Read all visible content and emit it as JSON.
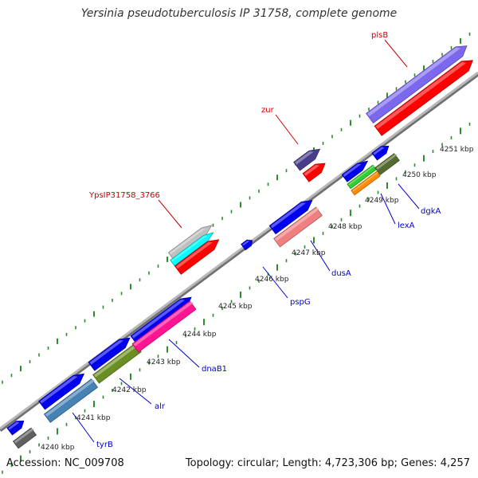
{
  "title": "Yersinia pseudotuberculosis IP 31758, complete genome",
  "footer": {
    "accession": "Accession: NC_009708",
    "summary": "Topology: circular; Length: 4,723,306 bp; Genes: 4,257"
  },
  "colors": {
    "backbone": "#a0a0a0",
    "ruler_tick": "#2e8b2e",
    "forward_label": "#cc0000",
    "reverse_label": "#0000cc"
  },
  "ruler_labels": [
    "4240 kbp",
    "4241 kbp",
    "4242 kbp",
    "4243 kbp",
    "4244 kbp",
    "4245 kbp",
    "4246 kbp",
    "4247 kbp",
    "4248 kbp",
    "4249 kbp",
    "4250 kbp",
    "4251 kbp"
  ],
  "gene_labels": [
    {
      "text": "plsB",
      "strand": "forward"
    },
    {
      "text": "zur",
      "strand": "forward"
    },
    {
      "text": "YpsIP31758_3766",
      "strand": "forward"
    },
    {
      "text": "dgkA",
      "strand": "reverse"
    },
    {
      "text": "lexA",
      "strand": "reverse"
    },
    {
      "text": "dusA",
      "strand": "reverse"
    },
    {
      "text": "pspG",
      "strand": "reverse"
    },
    {
      "text": "dnaB1",
      "strand": "reverse"
    },
    {
      "text": "alr",
      "strand": "reverse"
    },
    {
      "text": "tyrB",
      "strand": "reverse"
    }
  ],
  "features": [
    {
      "kind": "gene",
      "color": "#0000ee"
    },
    {
      "kind": "gene",
      "color": "#606060"
    },
    {
      "kind": "gene",
      "color": "#0000ee"
    },
    {
      "kind": "gene",
      "color": "#4682b4"
    },
    {
      "kind": "gene",
      "color": "#0000ee"
    },
    {
      "kind": "gene",
      "color": "#6b8e23"
    },
    {
      "kind": "gene",
      "color": "#0000ee"
    },
    {
      "kind": "gene",
      "color": "#ff1493"
    },
    {
      "kind": "gene",
      "color": "#0000ee"
    },
    {
      "kind": "gene",
      "color": "#0000ee"
    },
    {
      "kind": "gene",
      "color": "#f08080"
    },
    {
      "kind": "gene",
      "color": "#0000ee"
    },
    {
      "kind": "gene",
      "color": "#32cd32"
    },
    {
      "kind": "gene",
      "color": "#ff8c00"
    },
    {
      "kind": "gene",
      "color": "#0000ee"
    },
    {
      "kind": "gene",
      "color": "#556b2f"
    },
    {
      "kind": "gene",
      "color": "#c0c0c0"
    },
    {
      "kind": "gene",
      "color": "#00ffff"
    },
    {
      "kind": "gene",
      "color": "#ff0000"
    },
    {
      "kind": "gene",
      "color": "#483d8b"
    },
    {
      "kind": "gene",
      "color": "#ff0000"
    },
    {
      "kind": "gene",
      "color": "#7b68ee"
    },
    {
      "kind": "gene",
      "color": "#ff0000"
    }
  ]
}
